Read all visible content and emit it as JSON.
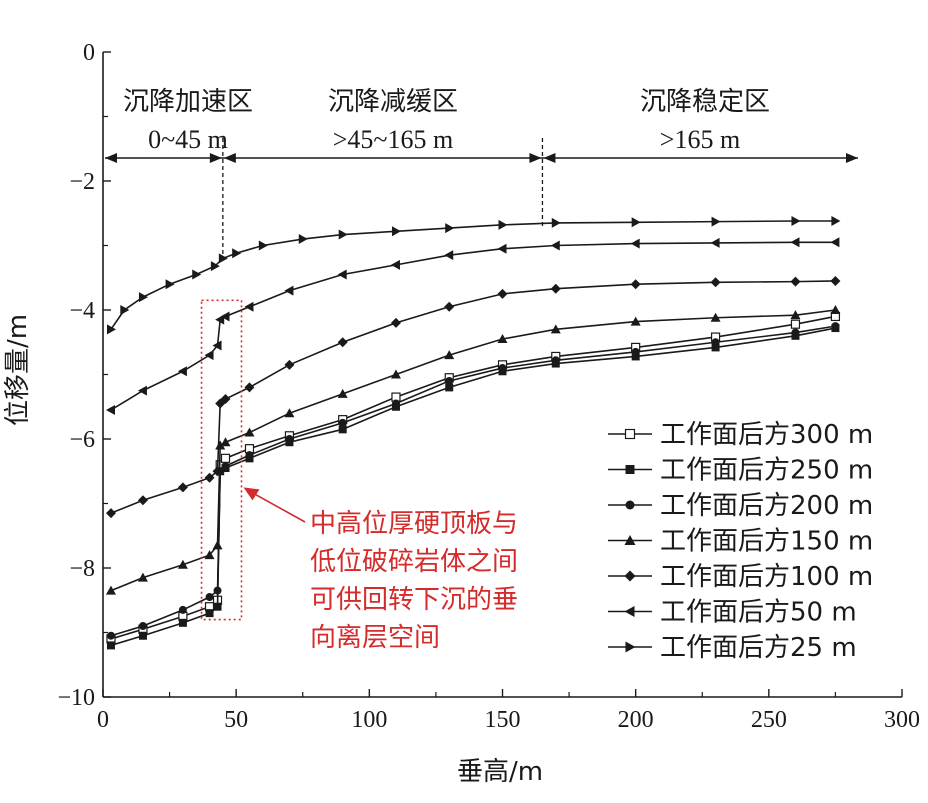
{
  "chart_data": {
    "type": "line",
    "xlabel": "垂高/m",
    "ylabel": "位移量/m",
    "xlim": [
      0,
      300
    ],
    "ylim": [
      -10,
      0
    ],
    "xticks": [
      0,
      50,
      100,
      150,
      200,
      250,
      300
    ],
    "yticks": [
      0,
      -2,
      -4,
      -6,
      -8,
      -10
    ],
    "xtick_labels": [
      "0",
      "50",
      "100",
      "150",
      "200",
      "250",
      "300"
    ],
    "ytick_labels": [
      "0",
      "−2",
      "−4",
      "−6",
      "−8",
      "−10"
    ],
    "grid": false,
    "legend_position": "lower-right",
    "zones": [
      {
        "name": "沉降加速区",
        "range": "0~45 m",
        "x_start": 0,
        "x_end": 45
      },
      {
        "name": "沉降减缓区",
        "range": ">45~165 m",
        "x_start": 45,
        "x_end": 165
      },
      {
        "name": "沉降稳定区",
        "range": ">165 m",
        "x_start": 165,
        "x_end": 285
      }
    ],
    "annotation": {
      "lines": [
        "中高位厚硬顶板与",
        "低位破碎岩体之间",
        "可供回转下沉的垂",
        "向离层空间"
      ],
      "box_x": [
        37,
        52
      ],
      "box_y": [
        -3.85,
        -8.8
      ],
      "color": "#d42b2b"
    },
    "series": [
      {
        "name": "工作面后方300 m",
        "marker": "square-open",
        "x": [
          3,
          15,
          30,
          40,
          43,
          44,
          46,
          55,
          70,
          90,
          110,
          130,
          150,
          170,
          200,
          230,
          260,
          275
        ],
        "y": [
          -9.1,
          -8.95,
          -8.75,
          -8.6,
          -8.5,
          -6.4,
          -6.3,
          -6.15,
          -5.95,
          -5.7,
          -5.35,
          -5.05,
          -4.85,
          -4.72,
          -4.58,
          -4.42,
          -4.22,
          -4.1
        ]
      },
      {
        "name": "工作面后方250 m",
        "marker": "square-filled",
        "x": [
          3,
          15,
          30,
          40,
          43,
          44,
          46,
          55,
          70,
          90,
          110,
          130,
          150,
          170,
          200,
          230,
          260,
          275
        ],
        "y": [
          -9.2,
          -9.05,
          -8.85,
          -8.7,
          -8.6,
          -6.5,
          -6.45,
          -6.3,
          -6.05,
          -5.85,
          -5.5,
          -5.2,
          -4.95,
          -4.83,
          -4.72,
          -4.58,
          -4.4,
          -4.28
        ]
      },
      {
        "name": "工作面后方200 m",
        "marker": "circle-filled",
        "x": [
          3,
          15,
          30,
          40,
          43,
          44,
          46,
          55,
          70,
          90,
          110,
          130,
          150,
          170,
          200,
          230,
          260,
          275
        ],
        "y": [
          -9.05,
          -8.9,
          -8.65,
          -8.45,
          -8.35,
          -6.5,
          -6.42,
          -6.25,
          -6.0,
          -5.75,
          -5.45,
          -5.1,
          -4.9,
          -4.78,
          -4.65,
          -4.5,
          -4.35,
          -4.25
        ]
      },
      {
        "name": "工作面后方150 m",
        "marker": "triangle-up",
        "x": [
          3,
          15,
          30,
          40,
          43,
          44,
          46,
          55,
          70,
          90,
          110,
          130,
          150,
          170,
          200,
          230,
          260,
          275
        ],
        "y": [
          -8.35,
          -8.15,
          -7.95,
          -7.8,
          -7.65,
          -6.1,
          -6.05,
          -5.9,
          -5.6,
          -5.3,
          -5.0,
          -4.7,
          -4.45,
          -4.3,
          -4.18,
          -4.12,
          -4.08,
          -4.0
        ]
      },
      {
        "name": "工作面后方100 m",
        "marker": "diamond-filled",
        "x": [
          3,
          15,
          30,
          40,
          43,
          44,
          46,
          55,
          70,
          90,
          110,
          130,
          150,
          170,
          200,
          230,
          260,
          275
        ],
        "y": [
          -7.15,
          -6.95,
          -6.75,
          -6.6,
          -6.5,
          -5.45,
          -5.38,
          -5.2,
          -4.85,
          -4.5,
          -4.2,
          -3.95,
          -3.75,
          -3.67,
          -3.6,
          -3.57,
          -3.56,
          -3.55
        ]
      },
      {
        "name": "工作面后方50 m",
        "marker": "triangle-left",
        "x": [
          3,
          15,
          30,
          40,
          43,
          44,
          46,
          55,
          70,
          90,
          110,
          130,
          150,
          170,
          200,
          230,
          260,
          275
        ],
        "y": [
          -5.55,
          -5.25,
          -4.95,
          -4.7,
          -4.55,
          -4.15,
          -4.1,
          -3.95,
          -3.7,
          -3.45,
          -3.3,
          -3.15,
          -3.05,
          -3.0,
          -2.97,
          -2.96,
          -2.95,
          -2.95
        ]
      },
      {
        "name": "工作面后方25 m",
        "marker": "triangle-right",
        "x": [
          3,
          8,
          15,
          25,
          35,
          42,
          45,
          50,
          60,
          75,
          90,
          110,
          130,
          150,
          170,
          200,
          230,
          260,
          275
        ],
        "y": [
          -4.3,
          -4.0,
          -3.8,
          -3.6,
          -3.45,
          -3.32,
          -3.2,
          -3.12,
          -3.0,
          -2.9,
          -2.83,
          -2.78,
          -2.73,
          -2.68,
          -2.65,
          -2.64,
          -2.63,
          -2.62,
          -2.62
        ]
      }
    ]
  }
}
